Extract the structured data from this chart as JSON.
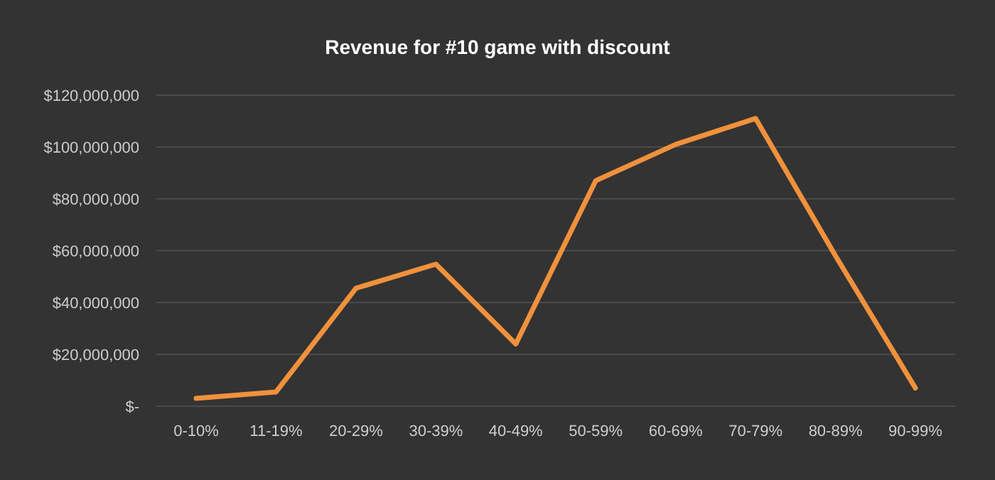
{
  "chart_data": {
    "type": "line",
    "title": "Revenue for #10 game with discount",
    "categories": [
      "0-10%",
      "11-19%",
      "20-29%",
      "30-39%",
      "40-49%",
      "50-59%",
      "60-69%",
      "70-79%",
      "80-89%",
      "90-99%"
    ],
    "series": [
      {
        "color": "#f0913c",
        "values": [
          3000000,
          5500000,
          45500000,
          54800000,
          24000000,
          87000000,
          101000000,
          111000000,
          58000000,
          7000000
        ]
      }
    ],
    "ylim": [
      0,
      120000000
    ],
    "yticks": [
      {
        "value": 0,
        "label": "$-"
      },
      {
        "value": 20000000,
        "label": "$20,000,000"
      },
      {
        "value": 40000000,
        "label": "$40,000,000"
      },
      {
        "value": 60000000,
        "label": "$60,000,000"
      },
      {
        "value": 80000000,
        "label": "$80,000,000"
      },
      {
        "value": 100000000,
        "label": "$100,000,000"
      },
      {
        "value": 120000000,
        "label": "$120,000,000"
      }
    ],
    "grid": "y",
    "marker": "none",
    "line_style": "solid"
  }
}
